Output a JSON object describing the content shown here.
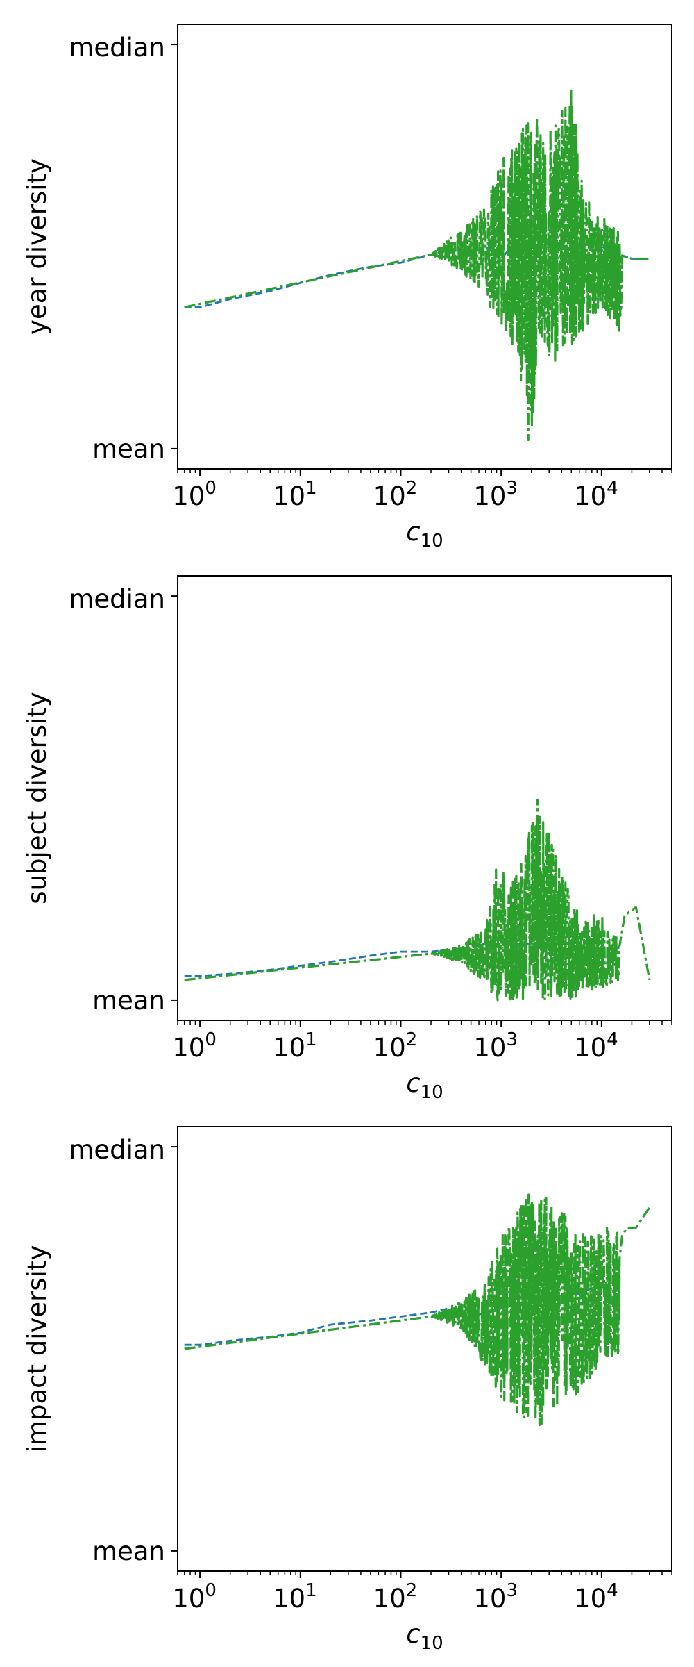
{
  "chart_data": [
    {
      "type": "line",
      "ylabel": "year diversity",
      "xlabel_base": "c",
      "xlabel_sub": "10",
      "xscale": "log",
      "xlim": [
        0.6,
        50000
      ],
      "xticks": [
        {
          "base": "10",
          "exp": "0"
        },
        {
          "base": "10",
          "exp": "1"
        },
        {
          "base": "10",
          "exp": "2"
        },
        {
          "base": "10",
          "exp": "3"
        },
        {
          "base": "10",
          "exp": "4"
        }
      ],
      "yticks": [
        "median",
        "mean"
      ],
      "ylim": [
        -0.05,
        1.05
      ],
      "series": [
        {
          "color": "#1f77b4",
          "style": "dashed",
          "x": [
            0.7,
            1,
            2,
            5,
            10,
            20,
            50,
            100,
            200,
            300,
            500,
            700,
            1000,
            1500,
            2000,
            3000,
            5000,
            7000,
            10000,
            15000,
            20000,
            30000
          ],
          "y": [
            0.35,
            0.35,
            0.37,
            0.39,
            0.41,
            0.43,
            0.45,
            0.46,
            0.48,
            0.49,
            0.48,
            0.5,
            0.47,
            0.52,
            0.46,
            0.5,
            0.49,
            0.47,
            0.5,
            0.48,
            0.47,
            0.47
          ]
        },
        {
          "color": "#2ca02c",
          "style": "dashdot",
          "x": [
            0.7,
            1,
            2,
            5,
            10,
            20,
            50,
            100,
            200,
            300,
            500,
            700,
            1000,
            1500,
            2000,
            3000,
            5000,
            7000,
            10000,
            15000,
            20000,
            30000
          ],
          "y": [
            0.35,
            0.35,
            0.37,
            0.39,
            0.41,
            0.43,
            0.45,
            0.46,
            0.48,
            0.49,
            0.48,
            0.5,
            0.47,
            0.52,
            0.46,
            0.5,
            0.49,
            0.47,
            0.5,
            0.48,
            0.47,
            0.47
          ],
          "band": [
            [
              0.7,
              0.35,
              0.35
            ],
            [
              200,
              0.48,
              0.48
            ],
            [
              300,
              0.46,
              0.52
            ],
            [
              700,
              0.38,
              0.6
            ],
            [
              1000,
              0.28,
              0.72
            ],
            [
              1500,
              0.2,
              0.78
            ],
            [
              1900,
              0.0,
              0.85
            ],
            [
              2500,
              0.25,
              0.82
            ],
            [
              3500,
              0.2,
              0.8
            ],
            [
              5000,
              0.25,
              0.9
            ],
            [
              7000,
              0.3,
              0.62
            ],
            [
              10000,
              0.35,
              0.58
            ],
            [
              14000,
              0.3,
              0.55
            ],
            [
              16000,
              0.27,
              0.52
            ]
          ]
        }
      ]
    },
    {
      "type": "line",
      "ylabel": "subject diversity",
      "xlabel_base": "c",
      "xlabel_sub": "10",
      "xscale": "log",
      "xlim": [
        0.6,
        50000
      ],
      "xticks": [
        {
          "base": "10",
          "exp": "0"
        },
        {
          "base": "10",
          "exp": "1"
        },
        {
          "base": "10",
          "exp": "2"
        },
        {
          "base": "10",
          "exp": "3"
        },
        {
          "base": "10",
          "exp": "4"
        }
      ],
      "yticks": [
        "median",
        "mean"
      ],
      "ylim": [
        -0.05,
        1.05
      ],
      "series": [
        {
          "color": "#1f77b4",
          "style": "dashed",
          "x": [
            0.7,
            1,
            2,
            5,
            10,
            20,
            50,
            100,
            200,
            500,
            700,
            1000,
            2000,
            3000,
            5000,
            10000,
            15000
          ],
          "y": [
            0.06,
            0.06,
            0.065,
            0.075,
            0.085,
            0.095,
            0.11,
            0.12,
            0.12,
            0.13,
            0.14,
            0.14,
            0.14,
            0.13,
            0.12,
            0.12,
            0.13
          ]
        },
        {
          "color": "#2ca02c",
          "style": "dashdot",
          "x": [
            0.7,
            1,
            2,
            5,
            10,
            20,
            50,
            100,
            200,
            500,
            700,
            1000,
            2000,
            3000,
            5000,
            10000,
            15000,
            17000,
            22000,
            30000
          ],
          "y": [
            0.05,
            0.05,
            0.055,
            0.065,
            0.075,
            0.09,
            0.105,
            0.115,
            0.115,
            0.11,
            0.12,
            0.12,
            0.13,
            0.12,
            0.1,
            0.12,
            0.13,
            0.21,
            0.23,
            0.05
          ],
          "band": [
            [
              0.7,
              0.05,
              0.05
            ],
            [
              200,
              0.115,
              0.115
            ],
            [
              400,
              0.09,
              0.14
            ],
            [
              700,
              0.04,
              0.18
            ],
            [
              900,
              0.0,
              0.38
            ],
            [
              1200,
              0.0,
              0.28
            ],
            [
              1800,
              0.0,
              0.4
            ],
            [
              2300,
              0.0,
              0.5
            ],
            [
              2600,
              0.0,
              0.45
            ],
            [
              3500,
              0.0,
              0.37
            ],
            [
              5000,
              0.0,
              0.25
            ],
            [
              7000,
              0.02,
              0.2
            ],
            [
              10000,
              0.03,
              0.22
            ],
            [
              15000,
              0.05,
              0.15
            ]
          ]
        }
      ]
    },
    {
      "type": "line",
      "ylabel": "impact diversity",
      "xlabel_base": "c",
      "xlabel_sub": "10",
      "xscale": "log",
      "xlim": [
        0.6,
        50000
      ],
      "xticks": [
        {
          "base": "10",
          "exp": "0"
        },
        {
          "base": "10",
          "exp": "1"
        },
        {
          "base": "10",
          "exp": "2"
        },
        {
          "base": "10",
          "exp": "3"
        },
        {
          "base": "10",
          "exp": "4"
        }
      ],
      "yticks": [
        "median",
        "mean"
      ],
      "ylim": [
        -0.05,
        1.05
      ],
      "series": [
        {
          "color": "#1f77b4",
          "style": "dashed",
          "x": [
            0.7,
            1,
            2,
            5,
            10,
            20,
            50,
            100,
            200,
            300,
            500,
            1000,
            2000,
            3000,
            5000,
            10000,
            14000
          ],
          "y": [
            0.51,
            0.51,
            0.52,
            0.53,
            0.54,
            0.56,
            0.57,
            0.58,
            0.59,
            0.6,
            0.58,
            0.6,
            0.62,
            0.6,
            0.63,
            0.66,
            0.64
          ]
        },
        {
          "color": "#2ca02c",
          "style": "dashdot",
          "x": [
            0.7,
            1,
            2,
            5,
            10,
            20,
            50,
            100,
            200,
            300,
            500,
            1000,
            2000,
            3000,
            5000,
            10000,
            14000,
            16000,
            18000,
            22000,
            30000
          ],
          "y": [
            0.5,
            0.5,
            0.51,
            0.52,
            0.53,
            0.55,
            0.56,
            0.57,
            0.58,
            0.59,
            0.57,
            0.6,
            0.62,
            0.6,
            0.63,
            0.66,
            0.65,
            0.78,
            0.8,
            0.8,
            0.85
          ],
          "band": [
            [
              0.7,
              0.5,
              0.5
            ],
            [
              200,
              0.58,
              0.58
            ],
            [
              400,
              0.55,
              0.62
            ],
            [
              700,
              0.45,
              0.68
            ],
            [
              1000,
              0.38,
              0.78
            ],
            [
              1500,
              0.32,
              0.85
            ],
            [
              2200,
              0.3,
              0.93
            ],
            [
              3000,
              0.33,
              0.87
            ],
            [
              4000,
              0.37,
              0.84
            ],
            [
              6000,
              0.39,
              0.79
            ],
            [
              9000,
              0.45,
              0.78
            ],
            [
              12000,
              0.48,
              0.82
            ],
            [
              15000,
              0.47,
              0.8
            ]
          ]
        }
      ]
    }
  ]
}
